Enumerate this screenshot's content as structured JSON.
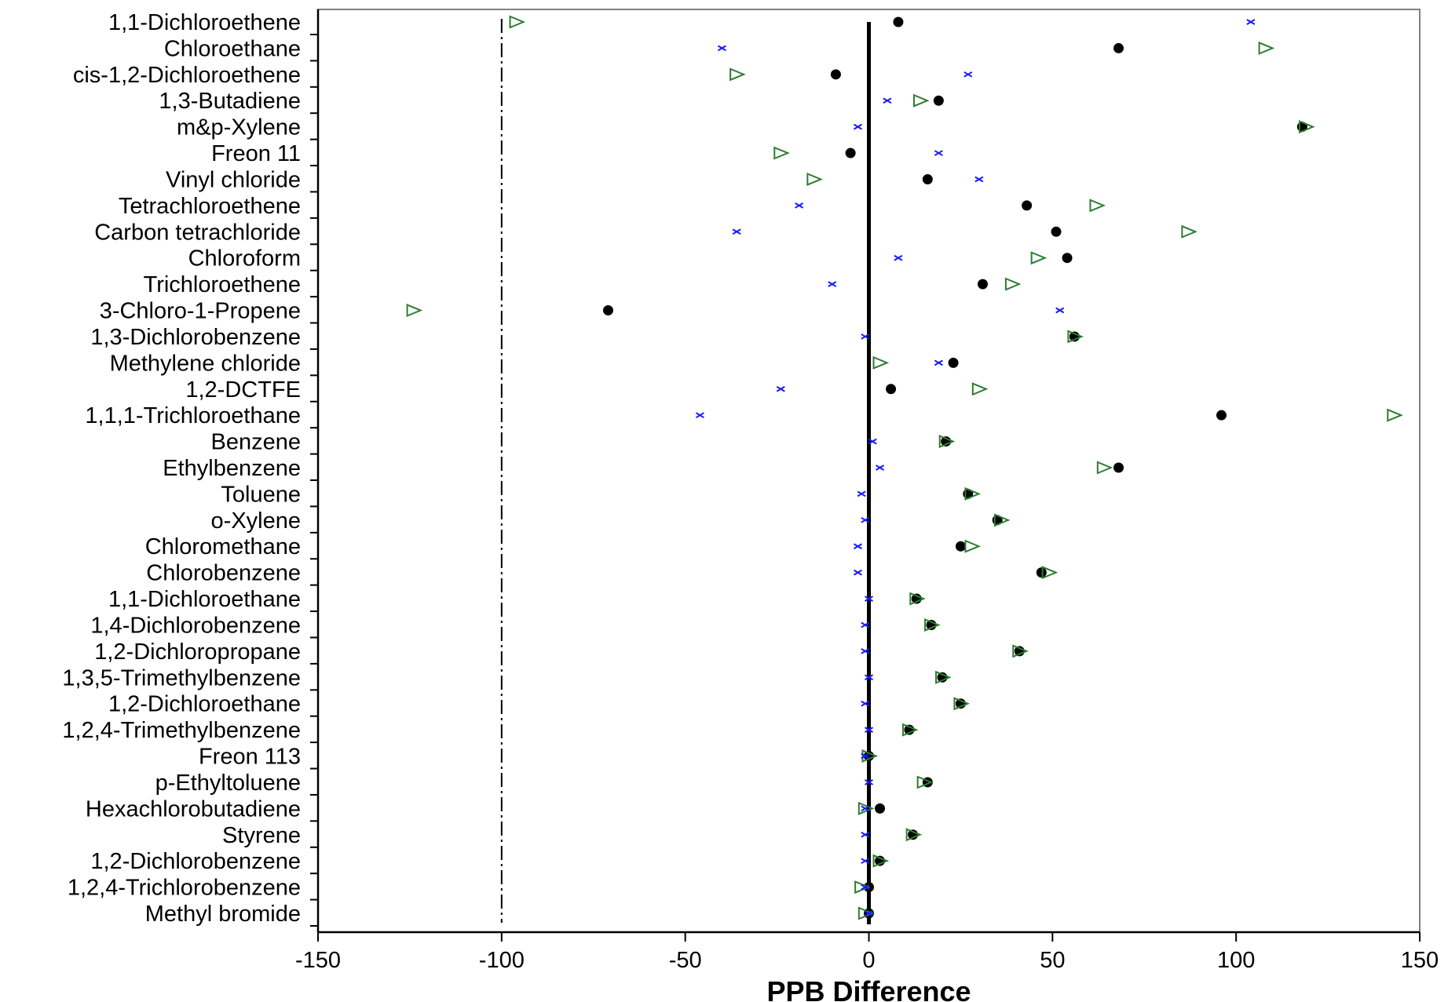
{
  "chart_data": {
    "type": "scatter",
    "orientation": "horizontal",
    "xlabel": "PPB Difference",
    "xlim": [
      -150,
      150
    ],
    "xticks": [
      -150,
      -100,
      -50,
      0,
      50,
      100,
      150
    ],
    "categories": [
      "1,1-Dichloroethene",
      "Chloroethane",
      "cis-1,2-Dichloroethene",
      "1,3-Butadiene",
      "m&p-Xylene",
      "Freon 11",
      "Vinyl chloride",
      "Tetrachloroethene",
      "Carbon tetrachloride",
      "Chloroform",
      "Trichloroethene",
      "3-Chloro-1-Propene",
      "1,3-Dichlorobenzene",
      "Methylene chloride",
      "1,2-DCTFE",
      "1,1,1-Trichloroethane",
      "Benzene",
      "Ethylbenzene",
      "Toluene",
      "o-Xylene",
      "Chloromethane",
      "Chlorobenzene",
      "1,1-Dichloroethane",
      "1,4-Dichlorobenzene",
      "1,2-Dichloropropane",
      "1,3,5-Trimethylbenzene",
      "1,2-Dichloroethane",
      "1,2,4-Trimethylbenzene",
      "Freon 113",
      "p-Ethyltoluene",
      "Hexachlorobutadiene",
      "Styrene",
      "1,2-Dichlorobenzene",
      "1,2,4-Trichlorobenzene",
      "Methyl bromide"
    ],
    "series": [
      {
        "marker": "circle",
        "color": "#000000",
        "values": [
          8,
          68,
          -9,
          19,
          118,
          -5,
          16,
          43,
          51,
          54,
          31,
          -71,
          56,
          23,
          6,
          96,
          21,
          68,
          27,
          35,
          25,
          47,
          13,
          17,
          41,
          20,
          25,
          11,
          0,
          16,
          3,
          12,
          3,
          0,
          0
        ]
      },
      {
        "marker": "triangle",
        "color": "#2e7d32",
        "values": [
          -96,
          108,
          -36,
          14,
          119,
          -24,
          -15,
          62,
          87,
          46,
          39,
          -124,
          56,
          3,
          30,
          143,
          21,
          64,
          28,
          36,
          28,
          49,
          13,
          17,
          41,
          20,
          25,
          11,
          0,
          15,
          -1,
          12,
          3,
          -2,
          -1
        ]
      },
      {
        "marker": "x",
        "color": "#1a1aff",
        "values": [
          104,
          -40,
          27,
          5,
          -3,
          19,
          30,
          -19,
          -36,
          8,
          -10,
          52,
          -1,
          19,
          -24,
          -46,
          1,
          3,
          -2,
          -1,
          -3,
          -3,
          0,
          -1,
          -1,
          0,
          -1,
          0,
          -1,
          0,
          -1,
          -1,
          -1,
          -1,
          0
        ]
      }
    ],
    "reference_lines": [
      {
        "x": 0,
        "style": "solid",
        "color": "#000000"
      },
      {
        "x": -100,
        "style": "dash-dot",
        "color": "#000000"
      }
    ],
    "grid": false,
    "legend": "none"
  }
}
